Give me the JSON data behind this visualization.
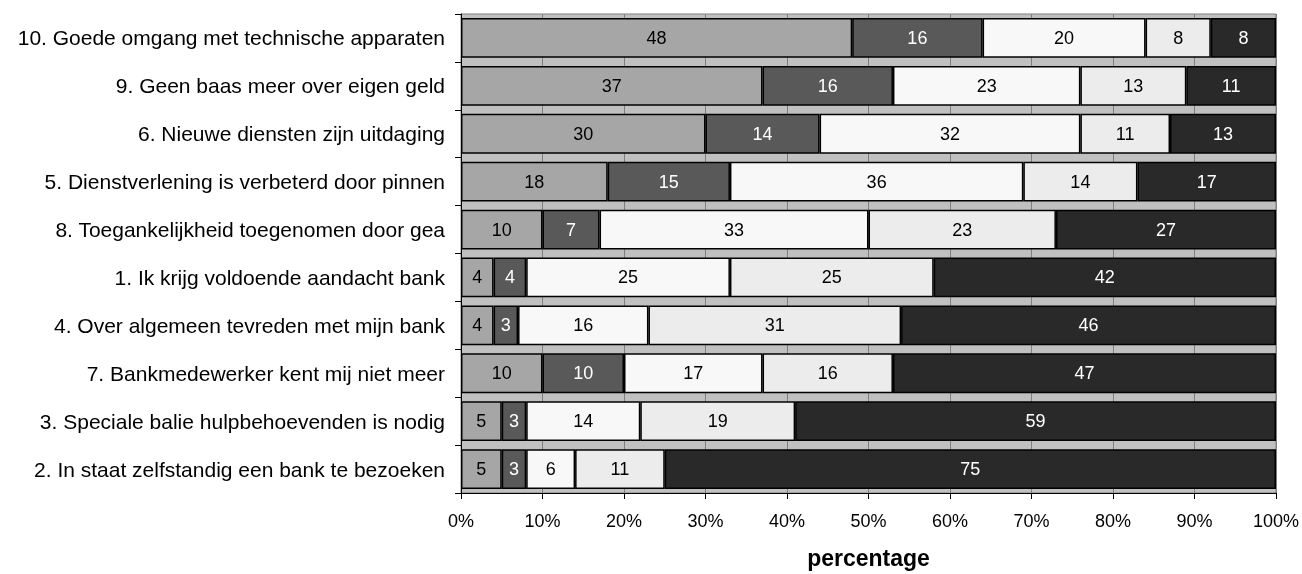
{
  "chart_data": {
    "type": "bar",
    "orientation": "horizontal",
    "stacked": true,
    "data_labels": true,
    "grid": "x",
    "xlabel": "percentage",
    "categories": [
      "10. Goede omgang met technische apparaten",
      "9. Geen baas meer over eigen geld",
      "6. Nieuwe diensten zijn uitdaging",
      "5. Dienstverlening is verbeterd door pinnen",
      "8. Toegankelijkheid toegenomen door gea",
      "1. Ik krijg voldoende aandacht bank",
      "4. Over algemeen tevreden met mijn bank",
      "7. Bankmedewerker kent mij niet meer",
      "3. Speciale balie hulpbehoevenden is nodig",
      "2. In staat zelfstandig een bank te bezoeken"
    ],
    "series": [
      {
        "color": "#a6a6a6",
        "values": [
          48,
          37,
          30,
          18,
          10,
          4,
          4,
          10,
          5,
          5
        ]
      },
      {
        "color": "#595959",
        "values": [
          16,
          16,
          14,
          15,
          7,
          4,
          3,
          10,
          3,
          3
        ]
      },
      {
        "color": "#f8f8f8",
        "values": [
          20,
          23,
          32,
          36,
          33,
          25,
          16,
          17,
          14,
          6
        ]
      },
      {
        "color": "#ececec",
        "values": [
          8,
          13,
          11,
          14,
          23,
          25,
          31,
          16,
          19,
          11
        ]
      },
      {
        "color": "#292929",
        "values": [
          8,
          11,
          13,
          17,
          27,
          42,
          46,
          47,
          59,
          75
        ]
      }
    ],
    "xlim": [
      0,
      100
    ],
    "xticks": [
      {
        "value": 0,
        "label": "0%"
      },
      {
        "value": 10,
        "label": "10%"
      },
      {
        "value": 20,
        "label": "20%"
      },
      {
        "value": 30,
        "label": "30%"
      },
      {
        "value": 40,
        "label": "40%"
      },
      {
        "value": 50,
        "label": "50%"
      },
      {
        "value": 60,
        "label": "60%"
      },
      {
        "value": 70,
        "label": "70%"
      },
      {
        "value": 80,
        "label": "80%"
      },
      {
        "value": 90,
        "label": "90%"
      },
      {
        "value": 100,
        "label": "100%"
      }
    ]
  }
}
